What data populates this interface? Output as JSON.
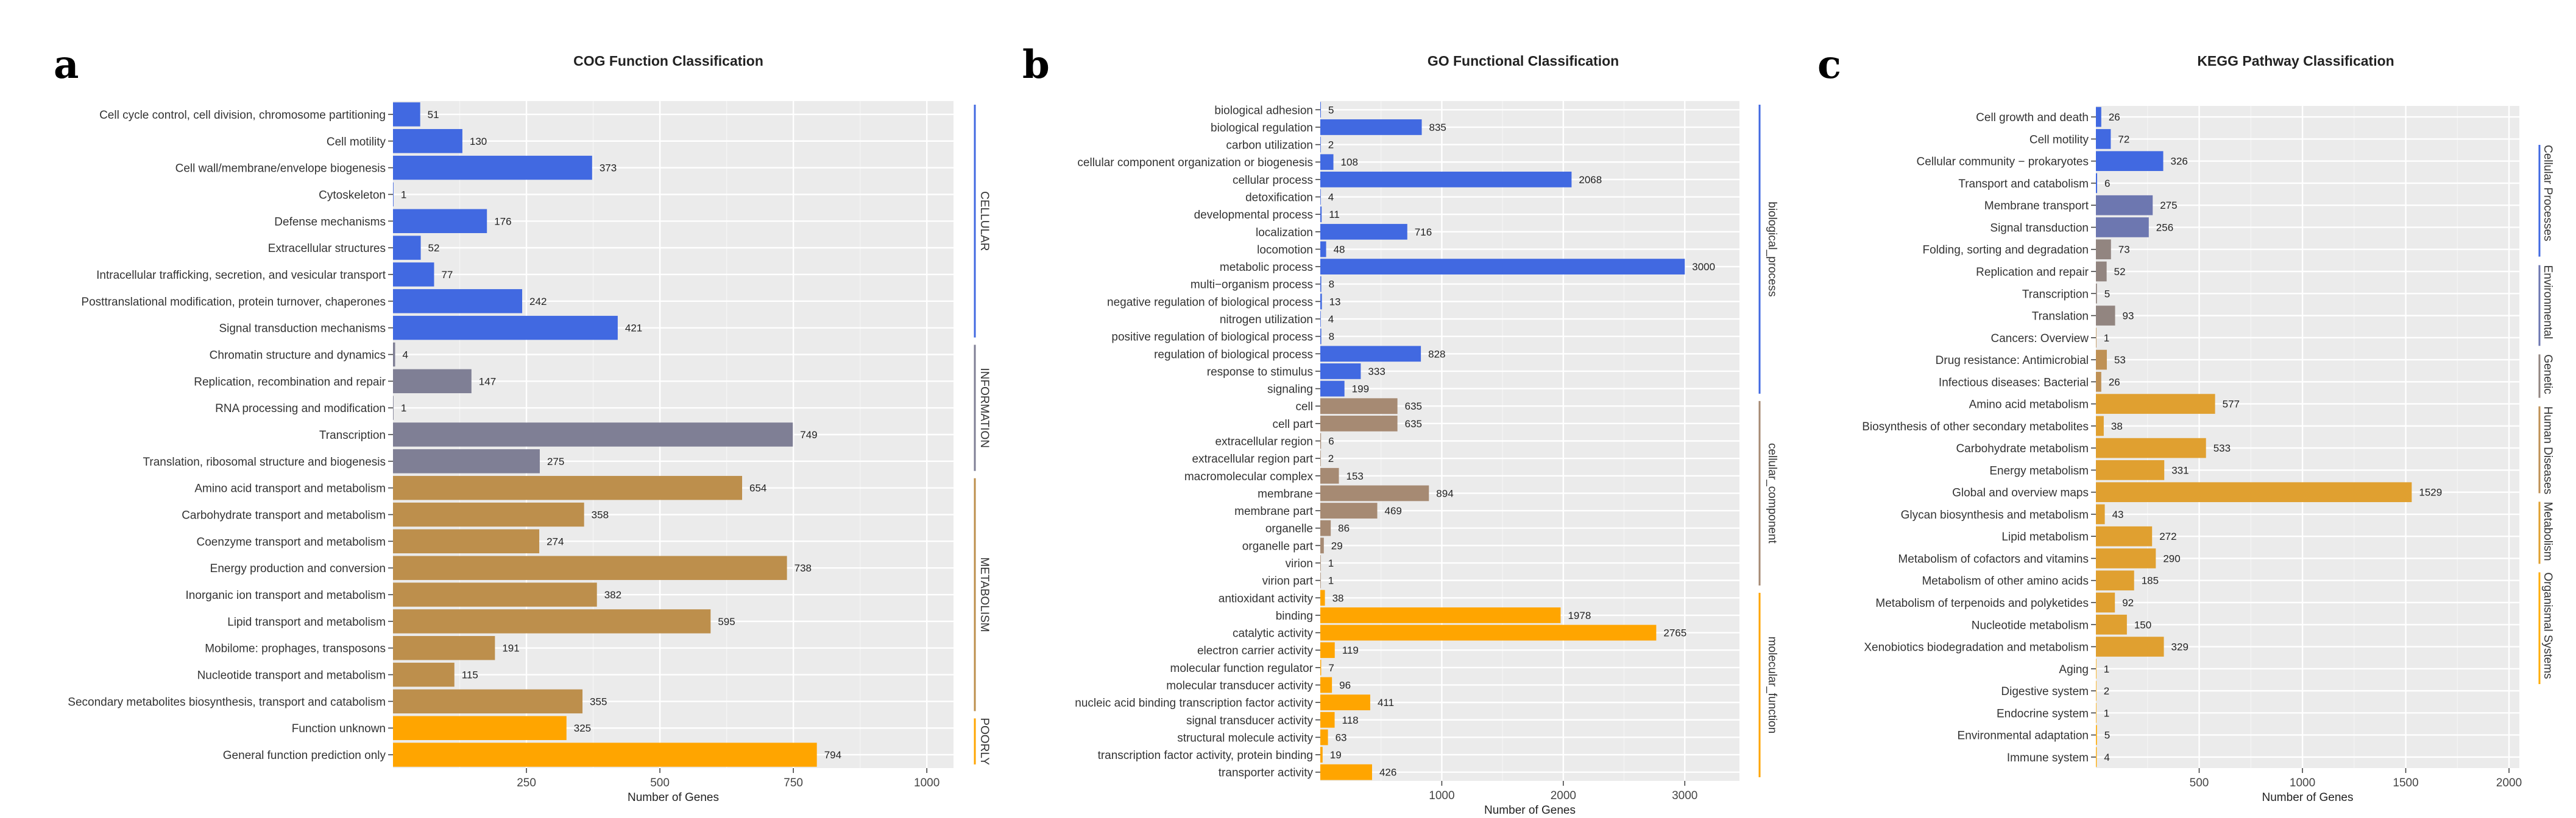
{
  "panels": [
    {
      "letter": "a"
    },
    {
      "letter": "b"
    },
    {
      "letter": "c"
    }
  ],
  "colors": {
    "cellular": "#4169e1",
    "information": "#7f7f95",
    "metabolism": "#bd8f4c",
    "poorly": "#ffa500",
    "go_biological": "#4169e1",
    "go_cellular": "#a68a73",
    "go_molecular": "#ffa500",
    "kegg_cellular": "#4169e1",
    "kegg_environmental": "#6d77b0",
    "kegg_genetic": "#928580",
    "kegg_human": "#bf9155",
    "kegg_metabolism": "#e0a030",
    "kegg_organismal": "#ffad0a"
  },
  "chart_data": [
    {
      "type": "bar",
      "orientation": "horizontal",
      "title": "COG Function Classification",
      "xlabel": "Number of Genes",
      "xlim": [
        0,
        1050
      ],
      "xticks": [
        250,
        500,
        750,
        1000
      ],
      "grid": true,
      "categories": [
        "Cell cycle control, cell division, chromosome partitioning",
        "Cell motility",
        "Cell wall/membrane/envelope biogenesis",
        "Cytoskeleton",
        "Defense mechanisms",
        "Extracellular structures",
        "Intracellular trafficking, secretion, and vesicular transport",
        "Posttranslational modification, protein turnover, chaperones",
        "Signal transduction mechanisms",
        "Chromatin structure and dynamics",
        "Replication, recombination and repair",
        "RNA processing and modification",
        "Transcription",
        "Translation, ribosomal structure and biogenesis",
        "Amino acid transport and metabolism",
        "Carbohydrate transport and metabolism",
        "Coenzyme transport and metabolism",
        "Energy production and conversion",
        "Inorganic ion transport and metabolism",
        "Lipid transport and metabolism",
        "Mobilome: prophages, transposons",
        "Nucleotide transport and metabolism",
        "Secondary metabolites biosynthesis, transport and catabolism",
        "Function unknown",
        "General function prediction only"
      ],
      "values": [
        51,
        130,
        373,
        1,
        176,
        52,
        77,
        242,
        421,
        4,
        147,
        1,
        749,
        275,
        654,
        358,
        274,
        738,
        382,
        595,
        191,
        115,
        355,
        325,
        794
      ],
      "groups": [
        {
          "name": "CELLULAR",
          "start": 0,
          "end": 8,
          "color": "#4169e1"
        },
        {
          "name": "INFORMATION",
          "start": 9,
          "end": 13,
          "color": "#7f7f95"
        },
        {
          "name": "METABOLISM",
          "start": 14,
          "end": 22,
          "color": "#bd8f4c"
        },
        {
          "name": "POORLY",
          "start": 23,
          "end": 24,
          "color": "#ffa500"
        }
      ]
    },
    {
      "type": "bar",
      "orientation": "horizontal",
      "title": "GO Functional Classification",
      "xlabel": "Number of Genes",
      "xlim": [
        0,
        3450
      ],
      "xticks": [
        1000,
        2000,
        3000
      ],
      "grid": true,
      "categories": [
        "biological adhesion",
        "biological regulation",
        "carbon utilization",
        "cellular component organization or biogenesis",
        "cellular process",
        "detoxification",
        "developmental process",
        "localization",
        "locomotion",
        "metabolic process",
        "multi−organism process",
        "negative regulation of biological process",
        "nitrogen utilization",
        "positive regulation of biological process",
        "regulation of biological process",
        "response to stimulus",
        "signaling",
        "cell",
        "cell part",
        "extracellular region",
        "extracellular region part",
        "macromolecular complex",
        "membrane",
        "membrane part",
        "organelle",
        "organelle part",
        "virion",
        "virion part",
        "antioxidant activity",
        "binding",
        "catalytic activity",
        "electron carrier activity",
        "molecular function regulator",
        "molecular transducer activity",
        "nucleic acid binding transcription factor activity",
        "signal transducer activity",
        "structural molecule activity",
        "transcription factor activity, protein binding",
        "transporter activity"
      ],
      "values": [
        5,
        835,
        2,
        108,
        2068,
        4,
        11,
        716,
        48,
        3000,
        8,
        13,
        4,
        8,
        828,
        333,
        199,
        635,
        635,
        6,
        2,
        153,
        894,
        469,
        86,
        29,
        1,
        1,
        38,
        1978,
        2765,
        119,
        7,
        96,
        411,
        118,
        63,
        19,
        426
      ],
      "groups": [
        {
          "name": "biological_process",
          "start": 0,
          "end": 16,
          "color": "#4169e1"
        },
        {
          "name": "cellular_component",
          "start": 17,
          "end": 27,
          "color": "#a68a73"
        },
        {
          "name": "molecular_function",
          "start": 28,
          "end": 38,
          "color": "#ffa500"
        }
      ]
    },
    {
      "type": "bar",
      "orientation": "horizontal",
      "title": "KEGG Pathway Classification",
      "xlabel": "Number of Genes",
      "xlim": [
        0,
        2050
      ],
      "xticks": [
        500,
        1000,
        1500,
        2000
      ],
      "grid": true,
      "categories": [
        "Cell growth and death",
        "Cell motility",
        "Cellular community − prokaryotes",
        "Transport and catabolism",
        "Membrane transport",
        "Signal transduction",
        "Folding, sorting and degradation",
        "Replication and repair",
        "Transcription",
        "Translation",
        "Cancers: Overview",
        "Drug resistance: Antimicrobial",
        "Infectious diseases: Bacterial",
        "Amino acid metabolism",
        "Biosynthesis of other secondary metabolites",
        "Carbohydrate metabolism",
        "Energy metabolism",
        "Global and overview maps",
        "Glycan biosynthesis and metabolism",
        "Lipid metabolism",
        "Metabolism of cofactors and vitamins",
        "Metabolism of other amino acids",
        "Metabolism of terpenoids and polyketides",
        "Nucleotide metabolism",
        "Xenobiotics biodegradation and metabolism",
        "Aging",
        "Digestive system",
        "Endocrine system",
        "Environmental adaptation",
        "Immune system"
      ],
      "values": [
        26,
        72,
        326,
        6,
        275,
        256,
        73,
        52,
        5,
        93,
        1,
        53,
        26,
        577,
        38,
        533,
        331,
        1529,
        43,
        272,
        290,
        185,
        92,
        150,
        329,
        1,
        2,
        1,
        5,
        4
      ],
      "groups": [
        {
          "name": "Cellular Processes",
          "start": 0,
          "end": 3,
          "color": "#4169e1"
        },
        {
          "name": "Environmental",
          "start": 4,
          "end": 5,
          "color": "#6d77b0"
        },
        {
          "name": "Genetic",
          "start": 6,
          "end": 9,
          "color": "#928580"
        },
        {
          "name": "Human Diseases",
          "start": 10,
          "end": 12,
          "color": "#bf9155"
        },
        {
          "name": "Metabolism",
          "start": 13,
          "end": 24,
          "color": "#e0a030"
        },
        {
          "name": "Organismal Systems",
          "start": 25,
          "end": 29,
          "color": "#ffad0a"
        }
      ]
    }
  ]
}
